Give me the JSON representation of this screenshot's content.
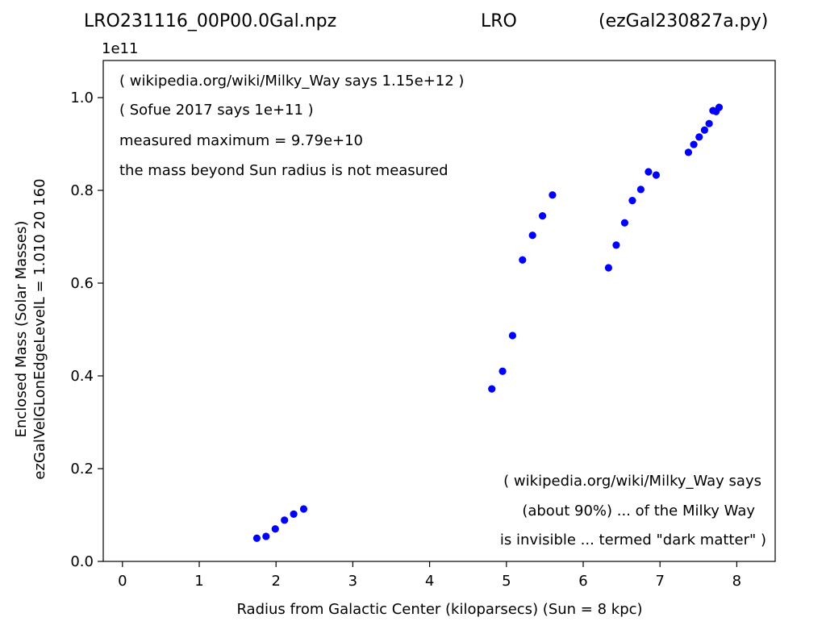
{
  "titles": {
    "left": "LRO231116_00P00.0Gal.npz",
    "center": "LRO",
    "right": "(ezGal230827a.py)"
  },
  "annotations": {
    "top_left": [
      "( wikipedia.org/wiki/Milky_Way says 1.15e+12 )",
      "( Sofue 2017 says 1e+11 )",
      "measured maximum = 9.79e+10",
      "the mass beyond Sun radius is not measured"
    ],
    "bottom_right": [
      "( wikipedia.org/wiki/Milky_Way says",
      "(about 90%) ... of the Milky Way",
      "is invisible ... termed \"dark matter\" )"
    ]
  },
  "chart_data": {
    "type": "scatter",
    "xlabel": "Radius from Galactic Center (kiloparsecs)  (Sun = 8 kpc)",
    "ylabel_lines": [
      "Enclosed Mass (Solar Masses)",
      "ezGalVelGLonEdgeLevelL = 1.010  20  160"
    ],
    "y_scale_label": "1e11",
    "xlim": [
      -0.25,
      8.5
    ],
    "ylim": [
      0.0,
      1.08
    ],
    "xticks": [
      0,
      1,
      2,
      3,
      4,
      5,
      6,
      7,
      8
    ],
    "xtick_labels": [
      "0",
      "1",
      "2",
      "3",
      "4",
      "5",
      "6",
      "7",
      "8"
    ],
    "yticks": [
      0.0,
      0.2,
      0.4,
      0.6,
      0.8,
      1.0
    ],
    "ytick_labels": [
      "0.0",
      "0.2",
      "0.4",
      "0.6",
      "0.8",
      "1.0"
    ],
    "grid": false,
    "marker_color": "#0000ff",
    "x": [
      1.75,
      1.87,
      1.99,
      2.11,
      2.23,
      2.36,
      4.81,
      4.95,
      5.08,
      5.21,
      5.34,
      5.47,
      5.6,
      6.33,
      6.43,
      6.54,
      6.64,
      6.75,
      6.85,
      6.95,
      7.37,
      7.44,
      7.51,
      7.58,
      7.64,
      7.69,
      7.73,
      7.77
    ],
    "y": [
      0.05,
      0.054,
      0.07,
      0.089,
      0.102,
      0.113,
      0.372,
      0.41,
      0.487,
      0.65,
      0.703,
      0.745,
      0.79,
      0.633,
      0.682,
      0.73,
      0.778,
      0.802,
      0.84,
      0.833,
      0.882,
      0.899,
      0.915,
      0.93,
      0.944,
      0.972,
      0.97,
      0.979
    ]
  }
}
